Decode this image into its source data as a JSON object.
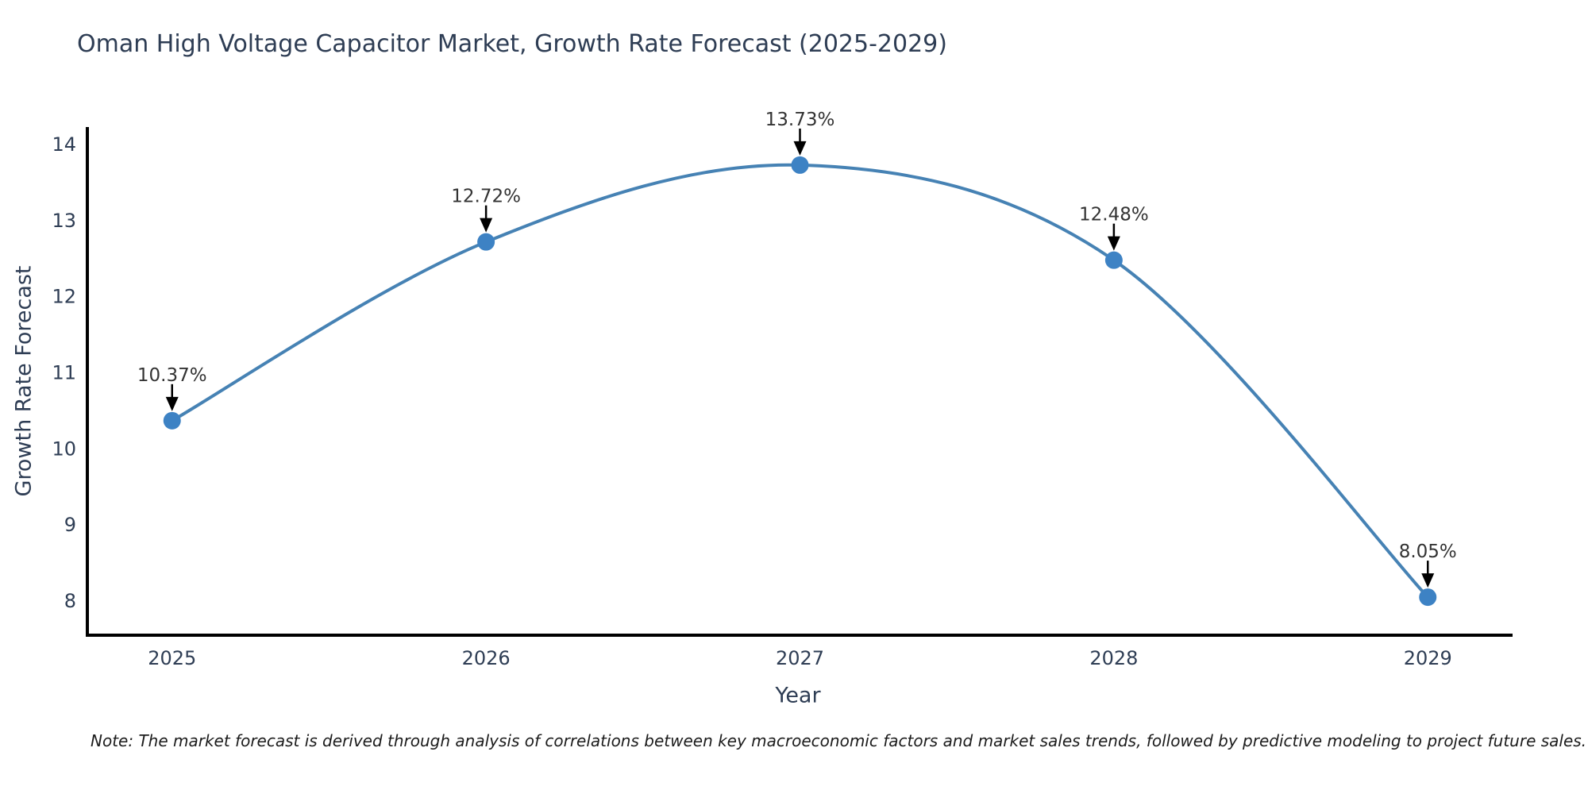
{
  "page": {
    "background": "#ffffff"
  },
  "chart_data": {
    "type": "line",
    "title": "Oman High Voltage Capacitor Market, Growth Rate Forecast (2025-2029)",
    "xlabel": "Year",
    "ylabel": "Growth Rate Forecast",
    "x": [
      2025,
      2026,
      2027,
      2028,
      2029
    ],
    "values": [
      10.37,
      12.72,
      13.73,
      12.48,
      8.05
    ],
    "point_labels": [
      "10.37%",
      "12.72%",
      "13.73%",
      "12.48%",
      "8.05%"
    ],
    "yticks": [
      8,
      9,
      10,
      11,
      12,
      13,
      14
    ],
    "xlim": [
      2024.73,
      2029.27
    ],
    "ylim": [
      7.55,
      14.23
    ],
    "grid": false,
    "legend": "none",
    "smooth_spline": true,
    "colors": {
      "line": "#4682b4",
      "marker": "#3d82c4",
      "axis": "#000000",
      "text": "#2e3d54",
      "annotation": "#333333",
      "arrow": "#000000"
    }
  },
  "note": {
    "text": "Note: The market forecast is derived through analysis of correlations between key macroeconomic factors and market sales trends, followed by predictive modeling to project future sales."
  }
}
